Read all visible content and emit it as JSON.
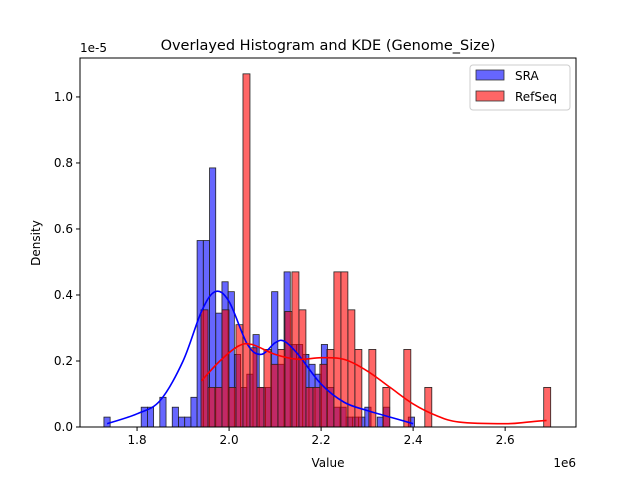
{
  "chart_data": {
    "type": "bar",
    "title": "Overlayed Histogram and KDE (Genome_Size)",
    "xlabel": "Value",
    "ylabel": "Density",
    "x_offset_label": "1e6",
    "y_offset_label": "1e-5",
    "xlim": [
      1.676,
      2.754
    ],
    "ylim": [
      0,
      1.118
    ],
    "x_ticks": [
      1.8,
      2.0,
      2.2,
      2.4,
      2.6
    ],
    "x_tick_labels": [
      "1.8",
      "2.0",
      "2.2",
      "2.4",
      "2.6"
    ],
    "y_ticks": [
      0,
      0.2,
      0.4,
      0.6,
      0.8,
      1.0
    ],
    "y_tick_labels": [
      "0.0",
      "0.2",
      "0.4",
      "0.6",
      "0.8",
      "1.0"
    ],
    "grid": false,
    "legend_position": "top-right",
    "series": [
      {
        "name": "SRA",
        "color": "#0000ff",
        "bin_start": 1.728,
        "bin_width": 0.0135,
        "values": [
          0.03,
          0,
          0,
          0,
          0,
          0,
          0.06,
          0.06,
          0,
          0.09,
          0,
          0.06,
          0.03,
          0.03,
          0.09,
          0.565,
          0.565,
          0.785,
          0.345,
          0.44,
          0.41,
          0.22,
          0.12,
          0.16,
          0.28,
          0.12,
          0.12,
          0.41,
          0.19,
          0.47,
          0.25,
          0.25,
          0.22,
          0.19,
          0.16,
          0.25,
          0.12,
          0.06,
          0.06,
          0.03,
          0.03,
          0.03,
          0.06,
          0,
          0.03,
          0.06,
          0,
          0,
          0,
          0.03
        ],
        "kde": [
          [
            1.735,
            0.01
          ],
          [
            1.8,
            0.04
          ],
          [
            1.85,
            0.08
          ],
          [
            1.9,
            0.2
          ],
          [
            1.94,
            0.35
          ],
          [
            1.97,
            0.41
          ],
          [
            2.0,
            0.38
          ],
          [
            2.04,
            0.25
          ],
          [
            2.07,
            0.22
          ],
          [
            2.1,
            0.255
          ],
          [
            2.12,
            0.26
          ],
          [
            2.15,
            0.22
          ],
          [
            2.2,
            0.13
          ],
          [
            2.25,
            0.075
          ],
          [
            2.3,
            0.05
          ],
          [
            2.35,
            0.03
          ],
          [
            2.4,
            0.01
          ]
        ]
      },
      {
        "name": "RefSeq",
        "color": "#ff0000",
        "bin_start": 1.939,
        "bin_width": 0.0152,
        "values": [
          0.355,
          0.12,
          0.12,
          0.355,
          0.12,
          0.31,
          1.07,
          0.24,
          0.12,
          0.235,
          0.19,
          0.235,
          0.35,
          0.47,
          0.355,
          0.12,
          0.12,
          0.19,
          0.235,
          0.47,
          0.47,
          0.355,
          0.235,
          0,
          0.235,
          0,
          0.12,
          0,
          0,
          0.235,
          0,
          0,
          0.12,
          0,
          0,
          0,
          0,
          0,
          0,
          0,
          0,
          0,
          0,
          0,
          0,
          0,
          0,
          0,
          0,
          0.12
        ],
        "kde": [
          [
            1.94,
            0.14
          ],
          [
            1.98,
            0.2
          ],
          [
            2.02,
            0.245
          ],
          [
            2.05,
            0.25
          ],
          [
            2.1,
            0.22
          ],
          [
            2.15,
            0.205
          ],
          [
            2.2,
            0.21
          ],
          [
            2.25,
            0.205
          ],
          [
            2.3,
            0.17
          ],
          [
            2.35,
            0.12
          ],
          [
            2.4,
            0.07
          ],
          [
            2.45,
            0.035
          ],
          [
            2.5,
            0.015
          ],
          [
            2.6,
            0.01
          ],
          [
            2.65,
            0.015
          ],
          [
            2.69,
            0.02
          ]
        ]
      }
    ]
  }
}
